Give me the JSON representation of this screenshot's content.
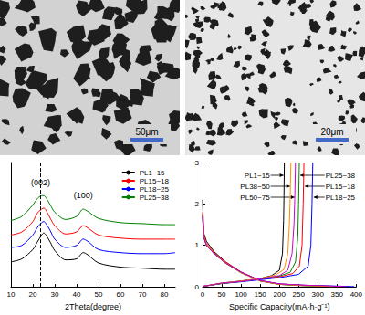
{
  "micrographs": [
    {
      "scale_bar": "50μm"
    },
    {
      "scale_bar": "20μm"
    }
  ],
  "chart_data": [
    {
      "type": "line",
      "x_label": "2Theta(degree)",
      "x": [
        10,
        15,
        20,
        22,
        24,
        25,
        26,
        28,
        30,
        35,
        40,
        43,
        45,
        50,
        60,
        70,
        80,
        85
      ],
      "series": [
        {
          "name": "PL1~15",
          "color": "#000000",
          "values": [
            2.4,
            2.7,
            3.6,
            4.3,
            5.0,
            5.2,
            5.0,
            4.3,
            3.5,
            2.6,
            2.7,
            3.3,
            3.1,
            2.3,
            1.9,
            1.8,
            1.7,
            1.7
          ]
        },
        {
          "name": "PL15~18",
          "color": "#ff0000",
          "values": [
            5.0,
            5.3,
            6.3,
            7.1,
            7.5,
            7.6,
            7.4,
            6.6,
            5.9,
            5.1,
            5.3,
            5.9,
            5.7,
            5.0,
            4.7,
            4.6,
            4.6,
            4.6
          ]
        },
        {
          "name": "PL18~25",
          "color": "#0000ff",
          "values": [
            3.8,
            4.0,
            5.0,
            5.7,
            6.2,
            6.3,
            6.1,
            5.4,
            4.6,
            3.8,
            4.0,
            4.6,
            4.4,
            3.6,
            3.3,
            3.2,
            3.2,
            3.3
          ]
        },
        {
          "name": "PL25~38",
          "color": "#008000",
          "values": [
            6.4,
            6.8,
            7.9,
            8.5,
            8.8,
            8.8,
            8.6,
            7.9,
            7.2,
            6.5,
            6.8,
            7.5,
            7.3,
            6.6,
            6.2,
            6.1,
            6.0,
            6.0
          ]
        }
      ],
      "xlim": [
        10,
        85
      ],
      "xticks": [
        10,
        20,
        30,
        40,
        50,
        60,
        70,
        80
      ],
      "ylim": [
        0,
        12
      ],
      "tick_labels": "x",
      "annotations": [
        {
          "text": "(002)",
          "x": 23.5,
          "y": 9.7
        },
        {
          "text": "(100)",
          "x": 43,
          "y": 8.4
        }
      ],
      "vline": 23.5,
      "legend": "top-right",
      "grid": false
    },
    {
      "type": "line",
      "x_label": "Specific Capacity(mA·h·g⁻¹)",
      "series": [
        {
          "name": "PL1~15",
          "color": "#000000",
          "discharge": [
            [
              0,
              2.1
            ],
            [
              3,
              1.3
            ],
            [
              10,
              1.1
            ],
            [
              30,
              0.85
            ],
            [
              60,
              0.6
            ],
            [
              100,
              0.35
            ],
            [
              150,
              0.14
            ],
            [
              200,
              0.06
            ],
            [
              260,
              0.03
            ],
            [
              300,
              0.02
            ],
            [
              330,
              0.005
            ]
          ],
          "charge": [
            [
              0,
              0.01
            ],
            [
              50,
              0.09
            ],
            [
              100,
              0.14
            ],
            [
              150,
              0.2
            ],
            [
              180,
              0.27
            ],
            [
              200,
              0.4
            ],
            [
              208,
              0.8
            ],
            [
              211,
              1.6
            ],
            [
              212,
              2.2
            ],
            [
              213,
              3.0
            ]
          ]
        },
        {
          "name": "PL15~18",
          "color": "#ff0000",
          "discharge": [
            [
              0,
              1.8
            ],
            [
              3,
              1.25
            ],
            [
              10,
              1.05
            ],
            [
              30,
              0.82
            ],
            [
              60,
              0.6
            ],
            [
              100,
              0.36
            ],
            [
              150,
              0.15
            ],
            [
              200,
              0.07
            ],
            [
              260,
              0.04
            ],
            [
              320,
              0.02
            ],
            [
              360,
              0.005
            ]
          ],
          "charge": [
            [
              0,
              0.01
            ],
            [
              50,
              0.08
            ],
            [
              100,
              0.13
            ],
            [
              150,
              0.18
            ],
            [
              200,
              0.24
            ],
            [
              235,
              0.32
            ],
            [
              252,
              0.5
            ],
            [
              259,
              1.0
            ],
            [
              262,
              2.0
            ],
            [
              264,
              3.0
            ]
          ]
        },
        {
          "name": "PL18~25",
          "color": "#0000ff",
          "discharge": [
            [
              0,
              1.75
            ],
            [
              3,
              1.2
            ],
            [
              10,
              1.0
            ],
            [
              30,
              0.8
            ],
            [
              60,
              0.58
            ],
            [
              100,
              0.35
            ],
            [
              150,
              0.15
            ],
            [
              200,
              0.07
            ],
            [
              260,
              0.04
            ],
            [
              340,
              0.02
            ],
            [
              395,
              0.005
            ]
          ],
          "charge": [
            [
              0,
              0.01
            ],
            [
              50,
              0.08
            ],
            [
              100,
              0.12
            ],
            [
              150,
              0.17
            ],
            [
              200,
              0.22
            ],
            [
              250,
              0.3
            ],
            [
              275,
              0.5
            ],
            [
              282,
              1.0
            ],
            [
              285,
              2.0
            ],
            [
              287,
              3.0
            ]
          ]
        },
        {
          "name": "PL25~38",
          "color": "#008000",
          "discharge": [
            [
              0,
              1.7
            ],
            [
              3,
              1.2
            ],
            [
              10,
              1.0
            ],
            [
              30,
              0.8
            ],
            [
              60,
              0.57
            ],
            [
              100,
              0.34
            ],
            [
              150,
              0.14
            ],
            [
              200,
              0.06
            ],
            [
              260,
              0.03
            ],
            [
              320,
              0.015
            ],
            [
              350,
              0.005
            ]
          ],
          "charge": [
            [
              0,
              0.01
            ],
            [
              50,
              0.08
            ],
            [
              100,
              0.13
            ],
            [
              150,
              0.19
            ],
            [
              200,
              0.26
            ],
            [
              228,
              0.35
            ],
            [
              242,
              0.6
            ],
            [
              248,
              1.2
            ],
            [
              250,
              2.0
            ],
            [
              252,
              3.0
            ]
          ]
        },
        {
          "name": "PL38~50",
          "color": "#ff8c00",
          "discharge": [
            [
              0,
              1.75
            ],
            [
              3,
              1.22
            ],
            [
              10,
              1.02
            ],
            [
              30,
              0.8
            ],
            [
              60,
              0.58
            ],
            [
              100,
              0.34
            ],
            [
              150,
              0.14
            ],
            [
              200,
              0.06
            ],
            [
              260,
              0.03
            ],
            [
              310,
              0.015
            ],
            [
              340,
              0.005
            ]
          ],
          "charge": [
            [
              0,
              0.01
            ],
            [
              50,
              0.09
            ],
            [
              100,
              0.14
            ],
            [
              150,
              0.2
            ],
            [
              190,
              0.28
            ],
            [
              212,
              0.42
            ],
            [
              222,
              0.8
            ],
            [
              226,
              1.5
            ],
            [
              228,
              2.1
            ],
            [
              230,
              3.0
            ]
          ]
        },
        {
          "name": "PL50~75",
          "color": "#cc00cc",
          "discharge": [
            [
              0,
              1.7
            ],
            [
              3,
              1.2
            ],
            [
              10,
              1.0
            ],
            [
              30,
              0.8
            ],
            [
              60,
              0.57
            ],
            [
              100,
              0.35
            ],
            [
              150,
              0.15
            ],
            [
              200,
              0.07
            ],
            [
              260,
              0.04
            ],
            [
              330,
              0.02
            ],
            [
              375,
              0.005
            ]
          ],
          "charge": [
            [
              0,
              0.01
            ],
            [
              50,
              0.09
            ],
            [
              100,
              0.13
            ],
            [
              150,
              0.19
            ],
            [
              200,
              0.27
            ],
            [
              222,
              0.4
            ],
            [
              233,
              0.8
            ],
            [
              238,
              1.5
            ],
            [
              240,
              2.1
            ],
            [
              242,
              3.0
            ]
          ]
        }
      ],
      "xlim": [
        0,
        400
      ],
      "xticks": [
        0,
        50,
        100,
        150,
        200,
        250,
        300,
        350,
        400
      ],
      "ylim": [
        0,
        3
      ],
      "yticks": [
        0,
        1,
        2,
        3
      ],
      "grid": false
    }
  ]
}
